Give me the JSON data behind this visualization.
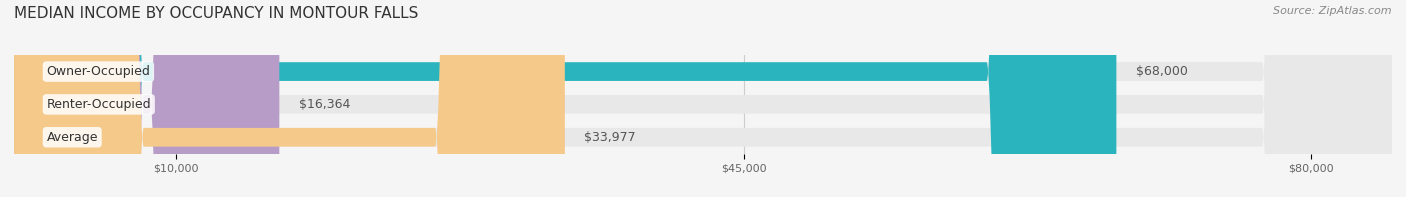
{
  "title": "MEDIAN INCOME BY OCCUPANCY IN MONTOUR FALLS",
  "source": "Source: ZipAtlas.com",
  "categories": [
    "Owner-Occupied",
    "Renter-Occupied",
    "Average"
  ],
  "values": [
    68000,
    16364,
    33977
  ],
  "bar_colors": [
    "#2ab5be",
    "#b89cc8",
    "#f5c98a"
  ],
  "bar_bg_color": "#e8e8e8",
  "label_colors": [
    "#2ab5be",
    "#b89cc8",
    "#f5c98a"
  ],
  "value_labels": [
    "$68,000",
    "$16,364",
    "$33,977"
  ],
  "x_ticks": [
    10000,
    45000,
    80000
  ],
  "x_tick_labels": [
    "$10,000",
    "$45,000",
    "$80,000"
  ],
  "xlim": [
    0,
    85000
  ],
  "bar_height": 0.55,
  "background_color": "#f5f5f5",
  "title_fontsize": 11,
  "label_fontsize": 9,
  "value_fontsize": 9,
  "source_fontsize": 8
}
